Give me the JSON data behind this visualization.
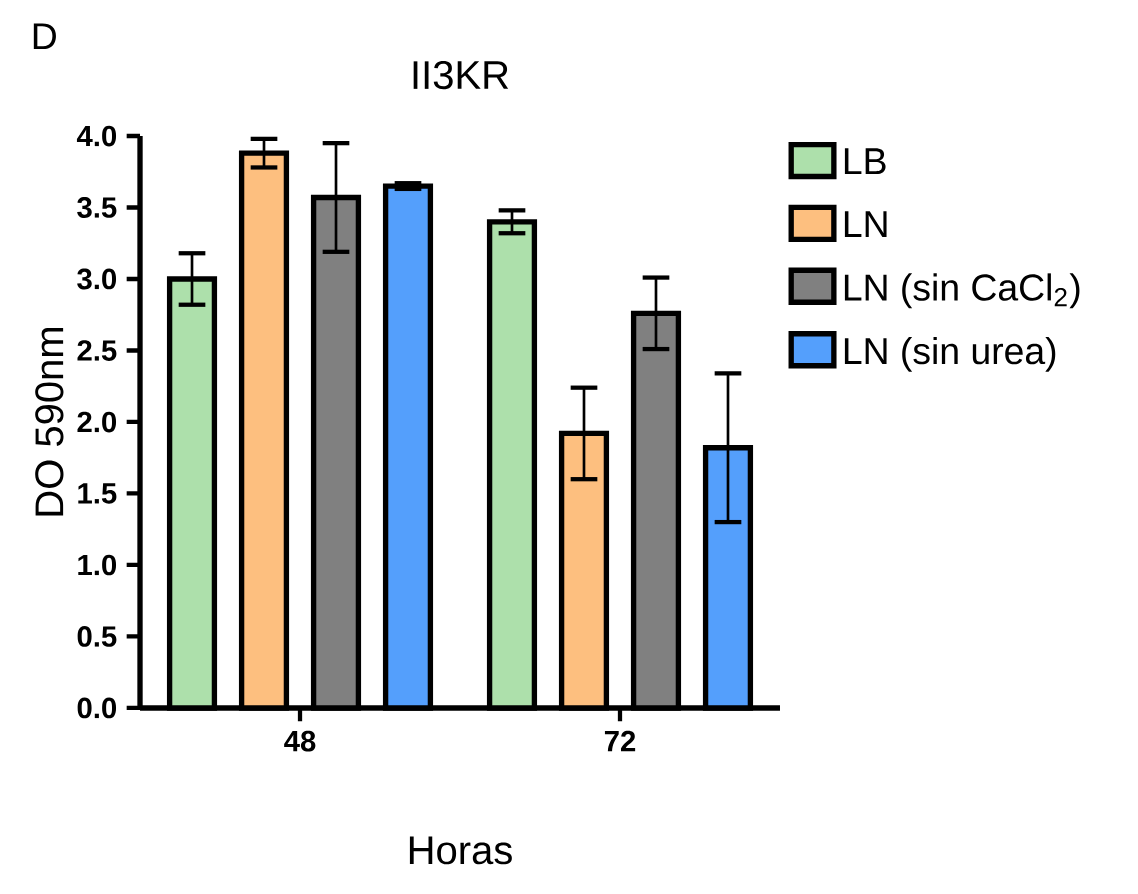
{
  "chart_data": {
    "type": "bar",
    "title": "II3KR",
    "xlabel": "Horas",
    "ylabel": "DO 590nm",
    "annotations": [
      "D"
    ],
    "categories": [
      "48",
      "72"
    ],
    "series": [
      {
        "name": "LB",
        "color": "#ade0ab",
        "values": [
          3.0,
          3.4
        ],
        "errors": [
          0.18,
          0.08
        ]
      },
      {
        "name": "LN",
        "color": "#fdbf7f",
        "values": [
          3.88,
          1.92
        ],
        "errors": [
          0.1,
          0.32
        ]
      },
      {
        "name": "LN (sin CaCl$_{2}$)",
        "color": "#808080",
        "values": [
          3.57,
          2.76
        ],
        "errors": [
          0.38,
          0.25
        ]
      },
      {
        "name": "LN (sin urea)",
        "color": "#549ffc",
        "values": [
          3.65,
          1.82
        ],
        "errors": [
          0.02,
          0.52
        ]
      }
    ],
    "ylim": [
      0,
      4
    ],
    "yticks": [
      {
        "value": 0,
        "label": "0.0"
      },
      0.5,
      {
        "value": 1,
        "label": "1.0"
      },
      1.5,
      {
        "value": 2,
        "label": "2.0"
      },
      2.5,
      {
        "value": 3,
        "label": "3.0"
      },
      3.5,
      {
        "value": 4,
        "label": "4.0"
      }
    ],
    "grid": false,
    "legend": "right"
  }
}
